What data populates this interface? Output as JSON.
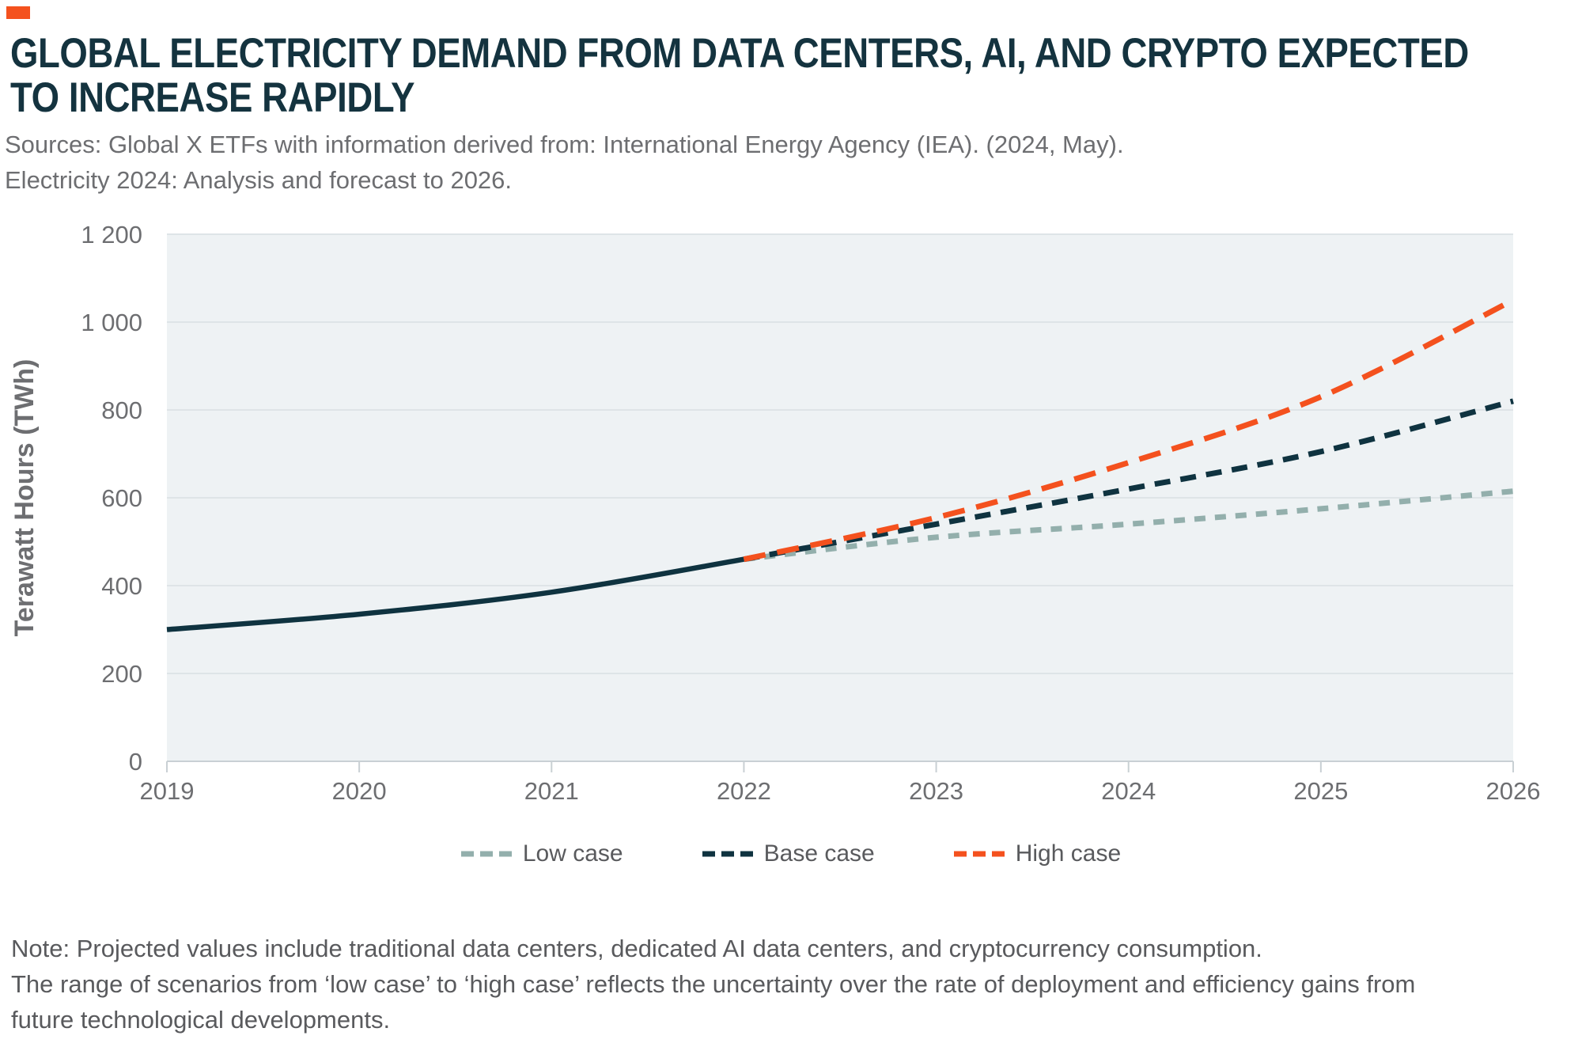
{
  "brand": {
    "accent_color": "#F4511E"
  },
  "header": {
    "title_line1": "GLOBAL ELECTRICITY DEMAND FROM DATA CENTERS, AI, AND CRYPTO EXPECTED",
    "title_line2": "TO INCREASE RAPIDLY",
    "title_color": "#14333F",
    "sources_line1": "Sources: Global X ETFs with information derived from: International Energy Agency (IEA). (2024, May).",
    "sources_line2": "Electricity 2024: Analysis and forecast to 2026."
  },
  "chart_data": {
    "type": "line",
    "title": "",
    "xlabel": "",
    "ylabel": "Terawatt Hours (TWh)",
    "xlim": [
      2019,
      2026
    ],
    "ylim": [
      0,
      1200
    ],
    "grid": "horizontal",
    "legend_position": "bottom",
    "plot_bg": "#EEF2F4",
    "grid_color": "#DEE4E7",
    "axis_color": "#C9D0D4",
    "tick_label_color": "#6D6E71",
    "x_ticks": [
      2019,
      2020,
      2021,
      2022,
      2023,
      2024,
      2025,
      2026
    ],
    "y_ticks": [
      {
        "v": 0,
        "label": "0"
      },
      {
        "v": 200,
        "label": "200"
      },
      {
        "v": 400,
        "label": "400"
      },
      {
        "v": 600,
        "label": "600"
      },
      {
        "v": 800,
        "label": "800"
      },
      {
        "v": 1000,
        "label": "1 000"
      },
      {
        "v": 1200,
        "label": "1 200"
      }
    ],
    "series": [
      {
        "name": "Historical",
        "color": "#0F3340",
        "dashed": false,
        "legend": false,
        "dash": "",
        "x": [
          2019,
          2020,
          2021,
          2022
        ],
        "y": [
          300,
          335,
          385,
          460
        ]
      },
      {
        "name": "Low case",
        "color": "#93AFAC",
        "dashed": true,
        "legend": true,
        "dash": "14 12",
        "x": [
          2022,
          2023,
          2024,
          2025,
          2026
        ],
        "y": [
          460,
          510,
          540,
          575,
          615
        ]
      },
      {
        "name": "Base case",
        "color": "#0F3340",
        "dashed": true,
        "legend": true,
        "dash": "20 13",
        "x": [
          2022,
          2023,
          2024,
          2025,
          2026
        ],
        "y": [
          460,
          540,
          620,
          705,
          820
        ]
      },
      {
        "name": "High case",
        "color": "#F4511E",
        "dashed": true,
        "legend": true,
        "dash": "28 15",
        "x": [
          2022,
          2023,
          2024,
          2025,
          2026
        ],
        "y": [
          460,
          555,
          680,
          830,
          1050
        ]
      }
    ]
  },
  "note": {
    "lines": [
      "Note: Projected values include traditional data centers, dedicated AI data centers, and cryptocurrency consumption.",
      "The range of scenarios from ‘low case’ to ‘high case’ reflects the uncertainty over the rate of deployment and efficiency gains from",
      "future technological developments."
    ]
  }
}
